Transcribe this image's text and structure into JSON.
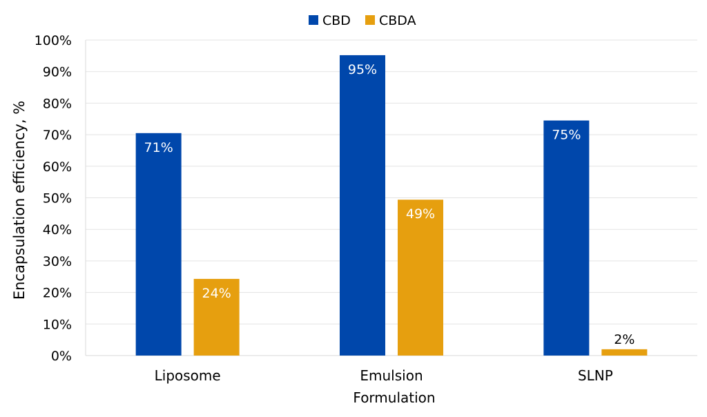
{
  "chart_data": {
    "type": "bar",
    "title": "",
    "categories": [
      "Liposome",
      "Emulsion",
      "SLNP"
    ],
    "series": [
      {
        "name": "CBD",
        "color": "#0047AB",
        "values": [
          70.5,
          95.2,
          74.5
        ],
        "labels": [
          "71%",
          "95%",
          "75%"
        ]
      },
      {
        "name": "CBDA",
        "color": "#E69F0F",
        "values": [
          24.3,
          49.4,
          2.0
        ],
        "labels": [
          "24%",
          "49%",
          "2%"
        ]
      }
    ],
    "xlabel": "Formulation",
    "ylabel": "Encapsulation efficiency, %",
    "ylim": [
      0,
      100
    ],
    "yticks": [
      0,
      10,
      20,
      30,
      40,
      50,
      60,
      70,
      80,
      90,
      100
    ],
    "ytick_labels": [
      "0%",
      "10%",
      "20%",
      "30%",
      "40%",
      "50%",
      "60%",
      "70%",
      "80%",
      "90%",
      "100%"
    ],
    "grid": true,
    "legend_position": "top-center"
  }
}
